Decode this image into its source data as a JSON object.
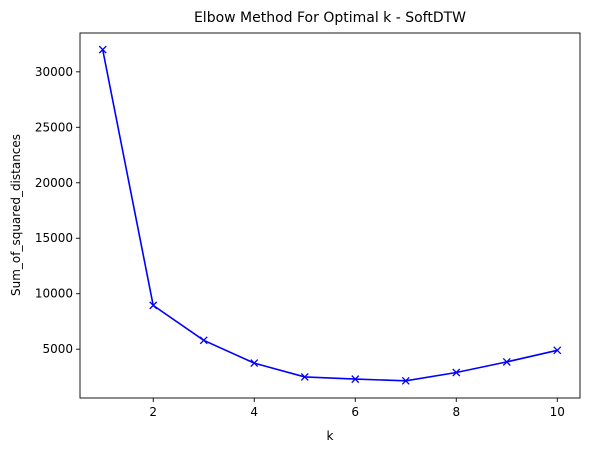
{
  "chart_data": {
    "type": "line",
    "title": "Elbow Method For Optimal k - SoftDTW",
    "xlabel": "k",
    "ylabel": "Sum_of_squared_distances",
    "x": [
      1,
      2,
      3,
      4,
      5,
      6,
      7,
      8,
      9,
      10
    ],
    "series": [
      {
        "values": [
          32000,
          8950,
          5800,
          3750,
          2500,
          2300,
          2150,
          2900,
          3850,
          4900
        ],
        "color": "#0000ff",
        "marker": "x"
      }
    ],
    "xlim": [
      0.55,
      10.45
    ],
    "ylim": [
      600,
      33500
    ],
    "xticks": [
      2,
      4,
      6,
      8,
      10
    ],
    "yticks": [
      5000,
      10000,
      15000,
      20000,
      25000,
      30000
    ],
    "grid": false,
    "legend": "none"
  }
}
